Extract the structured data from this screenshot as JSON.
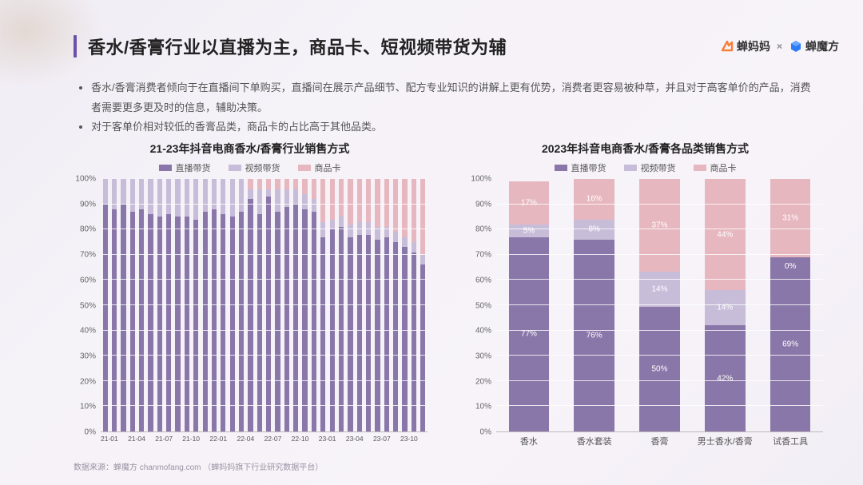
{
  "page": {
    "title": "香水/香膏行业以直播为主，商品卡、短视频带货为辅",
    "accent_color": "#6b4faa",
    "background_colors": [
      "#f0ecf4",
      "#f5f2f8",
      "#f7f3f9",
      "#f2eef5"
    ],
    "logos": {
      "cmm_text": "蝉妈妈",
      "cmm_icon_color": "#f5803b",
      "separator": "×",
      "cmf_text": "蝉魔方",
      "cmf_icon_color": "#2e7bf6"
    },
    "bullets": [
      "香水/香膏消费者倾向于在直播间下单购买，直播间在展示产品细节、配方专业知识的讲解上更有优势，消费者更容易被种草，并且对于高客单价的产品，消费者需要更多更及时的信息，辅助决策。",
      "对于客单价相对较低的香膏品类，商品卡的占比高于其他品类。"
    ],
    "legend_labels": [
      "直播带货",
      "视频带货",
      "商品卡"
    ],
    "series_colors": {
      "live": "#8a77a9",
      "video": "#c8bdd9",
      "card": "#e7b7c0"
    },
    "axis": {
      "ylim": [
        0,
        100
      ],
      "ytick_step": 10,
      "y_suffix": "%",
      "grid_color": "#ffffff",
      "axis_label_fontsize": 10,
      "x_fontsize_left": 8.5,
      "x_fontsize_right": 11
    },
    "left_chart": {
      "title": "21-23年抖音电商香水/香膏行业销售方式",
      "type": "stacked-bar-100",
      "categories": [
        "21-01",
        "21-02",
        "21-03",
        "21-04",
        "21-05",
        "21-06",
        "21-07",
        "21-08",
        "21-09",
        "21-10",
        "21-11",
        "21-12",
        "22-01",
        "22-02",
        "22-03",
        "22-04",
        "22-05",
        "22-06",
        "22-07",
        "22-08",
        "22-09",
        "22-10",
        "22-11",
        "22-12",
        "23-01",
        "23-02",
        "23-03",
        "23-04",
        "23-05",
        "23-06",
        "23-07",
        "23-08",
        "23-09",
        "23-10",
        "23-11",
        "23-12"
      ],
      "x_label_every": 3,
      "series": {
        "live": [
          90,
          88,
          90,
          87,
          88,
          86,
          85,
          86,
          85,
          85,
          84,
          87,
          88,
          86,
          85,
          87,
          92,
          86,
          93,
          87,
          89,
          90,
          88,
          87,
          77,
          80,
          81,
          77,
          78,
          78,
          76,
          77,
          75,
          73,
          71,
          66
        ],
        "video": [
          10,
          12,
          10,
          13,
          12,
          14,
          15,
          14,
          15,
          15,
          16,
          13,
          12,
          14,
          15,
          13,
          4,
          10,
          3,
          9,
          7,
          6,
          6,
          5,
          6,
          4,
          4,
          5,
          5,
          5,
          5,
          4,
          4,
          4,
          4,
          4
        ],
        "card": [
          0,
          0,
          0,
          0,
          0,
          0,
          0,
          0,
          0,
          0,
          0,
          0,
          0,
          0,
          0,
          0,
          4,
          4,
          4,
          4,
          4,
          4,
          6,
          8,
          17,
          16,
          15,
          18,
          17,
          17,
          19,
          19,
          21,
          23,
          25,
          30
        ]
      },
      "bar_width_ratio": 0.55,
      "show_value_labels": false
    },
    "right_chart": {
      "title": "2023年抖音电商香水/香膏各品类销售方式",
      "type": "stacked-bar-100",
      "categories": [
        "香水",
        "香水套装",
        "香膏",
        "男士香水/香膏",
        "试香工具"
      ],
      "series": {
        "live": [
          77,
          76,
          50,
          42,
          69
        ],
        "video": [
          5,
          8,
          14,
          14,
          0
        ],
        "card": [
          17,
          16,
          37,
          44,
          31
        ]
      },
      "labels": {
        "live": [
          "77%",
          "76%",
          "50%",
          "42%",
          "69%"
        ],
        "video": [
          "5%",
          "8%",
          "14%",
          "14%",
          "0%"
        ],
        "card": [
          "17%",
          "16%",
          "37%",
          "44%",
          "31%"
        ]
      },
      "bar_width_ratio": 0.62,
      "show_value_labels": true
    },
    "footnote": "数据来源：蝉魔方 chanmofang.com （蝉妈妈旗下行业研究数据平台）"
  }
}
